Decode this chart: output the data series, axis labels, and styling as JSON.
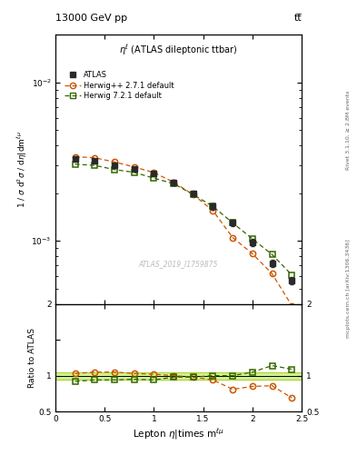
{
  "title_top": "13000 GeV pp",
  "title_top_right": "tt̅",
  "subtitle": "ηℓ (ATLAS dileptonic ttbar)",
  "watermark": "ATLAS_2019_I1759875",
  "right_label_top": "Rivet 3.1.10, ≥ 2.8M events",
  "right_label_bottom": "mcplots.cern.ch [arXiv:1306.3436]",
  "ylabel_main": "1 / σ d²σ / dη|dmᵉᵐᵘ",
  "ylabel_ratio": "Ratio to ATLAS",
  "xlabel": "Lepton η|times mᵉᵐᵘ",
  "xlim": [
    0.0,
    2.5
  ],
  "ylim_main": [
    0.0004,
    0.02
  ],
  "ylim_ratio": [
    0.5,
    2.0
  ],
  "x_atlas": [
    0.2,
    0.4,
    0.6,
    0.8,
    1.0,
    1.2,
    1.4,
    1.6,
    1.8,
    2.0,
    2.2,
    2.4
  ],
  "y_atlas": [
    0.0033,
    0.0032,
    0.003,
    0.00285,
    0.00265,
    0.00235,
    0.002,
    0.00165,
    0.0013,
    0.00098,
    0.00072,
    0.00056
  ],
  "y_atlas_err": [
    0.00012,
    0.0001,
    9e-05,
    9e-05,
    9e-05,
    9e-05,
    8e-05,
    7e-05,
    6e-05,
    5e-05,
    4e-05,
    3e-05
  ],
  "x_herwig_pp": [
    0.2,
    0.4,
    0.6,
    0.8,
    1.0,
    1.2,
    1.4,
    1.6,
    1.8,
    2.0,
    2.2,
    2.4
  ],
  "y_herwig_pp": [
    0.0034,
    0.00335,
    0.00315,
    0.00293,
    0.0027,
    0.00235,
    0.00196,
    0.00155,
    0.00105,
    0.00083,
    0.00062,
    0.00039
  ],
  "x_herwig72": [
    0.2,
    0.4,
    0.6,
    0.8,
    1.0,
    1.2,
    1.4,
    1.6,
    1.8,
    2.0,
    2.2,
    2.4
  ],
  "y_herwig72": [
    0.00305,
    0.003,
    0.00282,
    0.00271,
    0.00249,
    0.0023,
    0.00196,
    0.00165,
    0.0013,
    0.00103,
    0.00082,
    0.00061
  ],
  "ratio_herwig_pp": [
    1.03,
    1.05,
    1.05,
    1.03,
    1.02,
    1.0,
    0.98,
    0.94,
    0.81,
    0.85,
    0.86,
    0.69
  ],
  "ratio_herwig72": [
    0.92,
    0.94,
    0.94,
    0.95,
    0.94,
    0.98,
    0.98,
    1.0,
    1.0,
    1.05,
    1.14,
    1.09
  ],
  "color_atlas": "#2a2a2a",
  "color_herwig_pp": "#cc5500",
  "color_herwig72": "#336600",
  "color_band": "#ccee88",
  "color_band_edge": "#99cc00",
  "background_color": "#ffffff"
}
